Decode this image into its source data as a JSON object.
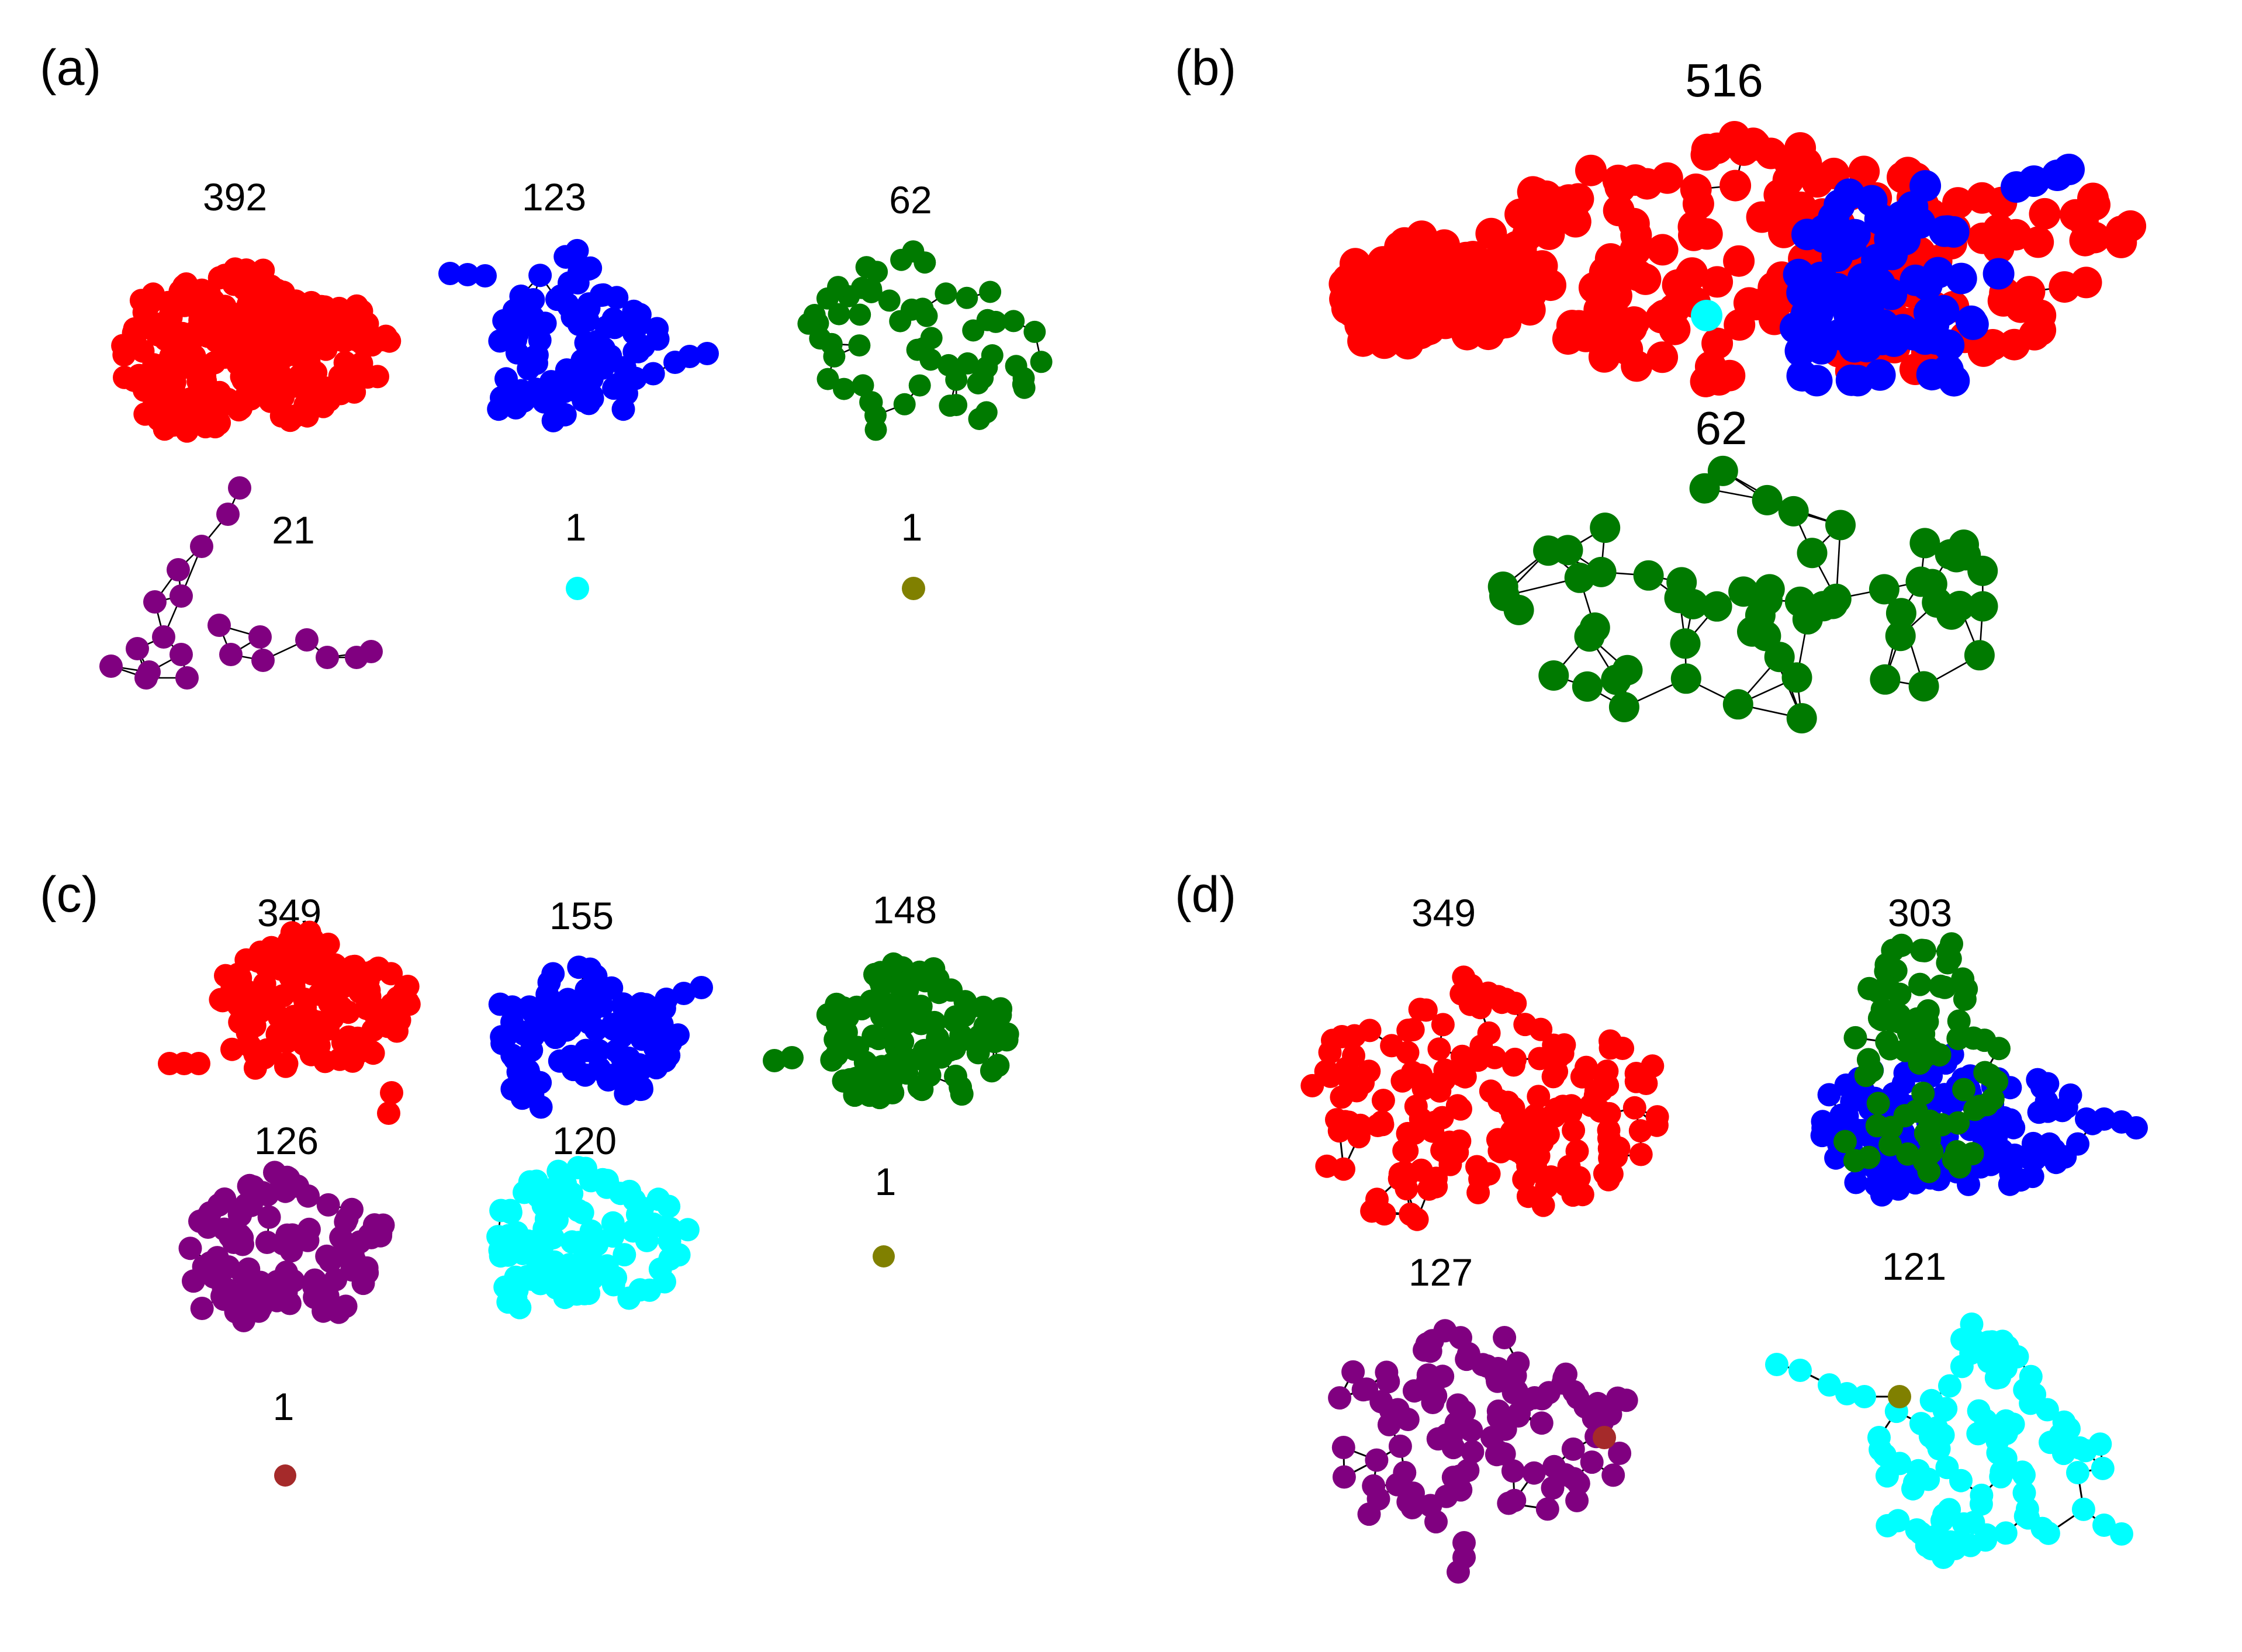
{
  "colors": {
    "red": "#ff0000",
    "blue": "#0000ff",
    "green": "#007a00",
    "purple": "#800080",
    "cyan": "#00ffff",
    "olive": "#808000",
    "brown": "#a52a2a"
  },
  "panels": [
    {
      "label": "(a)",
      "communities": [
        {
          "size_label": "392",
          "size": 392,
          "color": "red"
        },
        {
          "size_label": "123",
          "size": 123,
          "color": "blue"
        },
        {
          "size_label": "62",
          "size": 62,
          "color": "green"
        },
        {
          "size_label": "21",
          "size": 21,
          "color": "purple"
        },
        {
          "size_label": "1",
          "size": 1,
          "color": "cyan"
        },
        {
          "size_label": "1",
          "size": 1,
          "color": "olive"
        }
      ]
    },
    {
      "label": "(b)",
      "communities": [
        {
          "size_label": "516",
          "size": 516,
          "color": "red+blue+cyan"
        },
        {
          "size_label": "62",
          "size": 62,
          "color": "green"
        }
      ]
    },
    {
      "label": "(c)",
      "communities": [
        {
          "size_label": "349",
          "size": 349,
          "color": "red"
        },
        {
          "size_label": "155",
          "size": 155,
          "color": "blue"
        },
        {
          "size_label": "148",
          "size": 148,
          "color": "green"
        },
        {
          "size_label": "126",
          "size": 126,
          "color": "purple"
        },
        {
          "size_label": "120",
          "size": 120,
          "color": "cyan"
        },
        {
          "size_label": "1",
          "size": 1,
          "color": "olive"
        },
        {
          "size_label": "1",
          "size": 1,
          "color": "brown"
        }
      ]
    },
    {
      "label": "(d)",
      "communities": [
        {
          "size_label": "349",
          "size": 349,
          "color": "red"
        },
        {
          "size_label": "303",
          "size": 303,
          "color": "green+blue"
        },
        {
          "size_label": "127",
          "size": 127,
          "color": "purple+brown"
        },
        {
          "size_label": "121",
          "size": 121,
          "color": "cyan+olive"
        }
      ]
    }
  ]
}
